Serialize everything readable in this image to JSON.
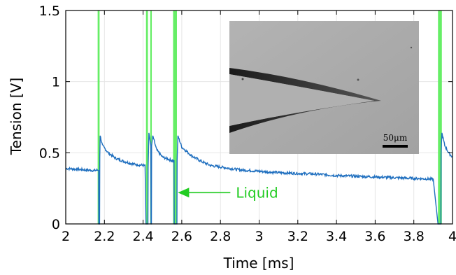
{
  "chart_data": {
    "type": "line",
    "xlabel": "Time [ms]",
    "ylabel": "Tension [V]",
    "xlim": [
      2,
      4
    ],
    "ylim": [
      0,
      1.5
    ],
    "x_ticks": [
      "2",
      "2.2",
      "2.4",
      "2.6",
      "2.8",
      "3",
      "3.2",
      "3.4",
      "3.6",
      "3.8",
      "4"
    ],
    "y_ticks": [
      "0",
      "0.5",
      "1",
      "1.5"
    ],
    "grid": true,
    "series": [
      {
        "color": "#1f6fbf",
        "points": [
          [
            2.0,
            0.39
          ],
          [
            2.05,
            0.385
          ],
          [
            2.1,
            0.38
          ],
          [
            2.15,
            0.375
          ],
          [
            2.17,
            0.38
          ],
          [
            2.171,
            0.0
          ],
          [
            2.175,
            0.0
          ],
          [
            2.176,
            0.47
          ],
          [
            2.178,
            0.62
          ],
          [
            2.19,
            0.55
          ],
          [
            2.22,
            0.5
          ],
          [
            2.26,
            0.46
          ],
          [
            2.3,
            0.44
          ],
          [
            2.35,
            0.42
          ],
          [
            2.41,
            0.41
          ],
          [
            2.415,
            0.0
          ],
          [
            2.425,
            0.0
          ],
          [
            2.426,
            0.4
          ],
          [
            2.43,
            0.64
          ],
          [
            2.44,
            0.55
          ],
          [
            2.441,
            0.0
          ],
          [
            2.443,
            0.0
          ],
          [
            2.444,
            0.55
          ],
          [
            2.45,
            0.62
          ],
          [
            2.47,
            0.52
          ],
          [
            2.5,
            0.47
          ],
          [
            2.54,
            0.45
          ],
          [
            2.56,
            0.44
          ],
          [
            2.561,
            0.0
          ],
          [
            2.575,
            0.0
          ],
          [
            2.576,
            0.45
          ],
          [
            2.58,
            0.62
          ],
          [
            2.6,
            0.54
          ],
          [
            2.65,
            0.48
          ],
          [
            2.7,
            0.44
          ],
          [
            2.75,
            0.41
          ],
          [
            2.8,
            0.4
          ],
          [
            2.9,
            0.38
          ],
          [
            3.0,
            0.37
          ],
          [
            3.1,
            0.36
          ],
          [
            3.2,
            0.355
          ],
          [
            3.3,
            0.35
          ],
          [
            3.4,
            0.34
          ],
          [
            3.5,
            0.335
          ],
          [
            3.6,
            0.33
          ],
          [
            3.7,
            0.325
          ],
          [
            3.8,
            0.32
          ],
          [
            3.9,
            0.315
          ],
          [
            3.925,
            0.0
          ],
          [
            3.94,
            0.0
          ],
          [
            3.941,
            0.5
          ],
          [
            3.945,
            0.64
          ],
          [
            3.96,
            0.55
          ],
          [
            3.98,
            0.5
          ],
          [
            4.0,
            0.47
          ]
        ]
      }
    ],
    "highlight_bands": [
      {
        "color": "#66ee66",
        "x_start": 2.165,
        "x_end": 2.175
      },
      {
        "color": "#66ee66",
        "x_start": 2.415,
        "x_end": 2.425
      },
      {
        "color": "#66ee66",
        "x_start": 2.437,
        "x_end": 2.445
      },
      {
        "color": "#66ee66",
        "x_start": 2.555,
        "x_end": 2.575
      },
      {
        "color": "#66ee66",
        "x_start": 3.925,
        "x_end": 3.945
      }
    ],
    "annotations": [
      {
        "text": "Liquid",
        "color": "#22cc22",
        "arrow_to_x": 2.58,
        "arrow_at_y": 0.22
      }
    ],
    "inset": {
      "scale_bar_label": "50μm",
      "background": "#a9a9a9"
    }
  }
}
